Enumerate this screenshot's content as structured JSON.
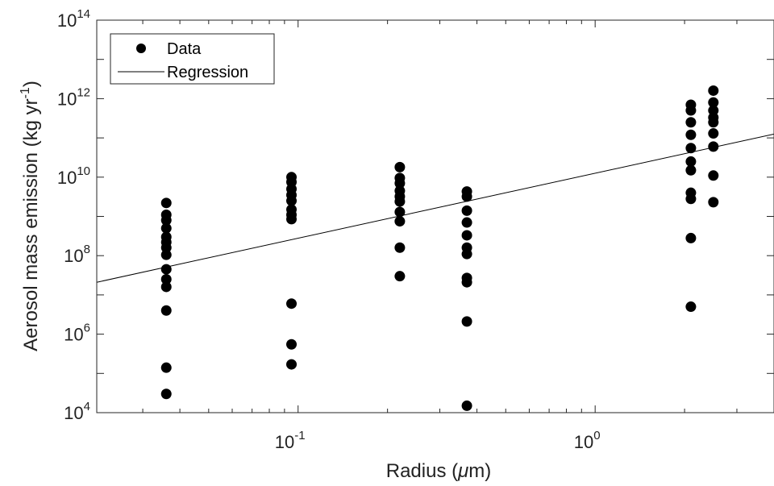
{
  "chart_data": {
    "type": "scatter",
    "x_scale": "log",
    "y_scale": "log",
    "xlim": [
      0.021,
      4.0
    ],
    "ylim": [
      10000,
      100000000000000
    ],
    "xlabel": {
      "prefix": "Radius (",
      "greek": "μ",
      "suffix": "m)"
    },
    "ylabel": {
      "main": "Aerosol mass emission (kg yr",
      "sup": "-1",
      "close": ")"
    },
    "x_ticks": [
      {
        "value": 0.1,
        "base": "10",
        "exp": "-1"
      },
      {
        "value": 1,
        "base": "10",
        "exp": "0"
      }
    ],
    "y_ticks": [
      {
        "value": 10000,
        "base": "10",
        "exp": "4"
      },
      {
        "value": 1000000,
        "base": "10",
        "exp": "6"
      },
      {
        "value": 100000000,
        "base": "10",
        "exp": "8"
      },
      {
        "value": 10000000000,
        "base": "10",
        "exp": "10"
      },
      {
        "value": 1000000000000,
        "base": "10",
        "exp": "12"
      },
      {
        "value": 100000000000000,
        "base": "10",
        "exp": "14"
      }
    ],
    "grid": false,
    "legend_position": "top-left",
    "series": [
      {
        "name": "Data",
        "mark": "circle",
        "color": "#000000",
        "points": [
          {
            "x": 0.036,
            "y": 2200000000.0
          },
          {
            "x": 0.036,
            "y": 1100000000.0
          },
          {
            "x": 0.036,
            "y": 800000000.0
          },
          {
            "x": 0.036,
            "y": 500000000.0
          },
          {
            "x": 0.036,
            "y": 300000000.0
          },
          {
            "x": 0.036,
            "y": 220000000.0
          },
          {
            "x": 0.036,
            "y": 160000000.0
          },
          {
            "x": 0.036,
            "y": 105000000.0
          },
          {
            "x": 0.036,
            "y": 45000000.0
          },
          {
            "x": 0.036,
            "y": 25000000.0
          },
          {
            "x": 0.036,
            "y": 16000000.0
          },
          {
            "x": 0.036,
            "y": 4000000.0
          },
          {
            "x": 0.036,
            "y": 140000.0
          },
          {
            "x": 0.036,
            "y": 30000.0
          },
          {
            "x": 0.095,
            "y": 10000000000.0
          },
          {
            "x": 0.095,
            "y": 7500000000.0
          },
          {
            "x": 0.095,
            "y": 5000000000.0
          },
          {
            "x": 0.095,
            "y": 3500000000.0
          },
          {
            "x": 0.095,
            "y": 2500000000.0
          },
          {
            "x": 0.095,
            "y": 1500000000.0
          },
          {
            "x": 0.095,
            "y": 1100000000.0
          },
          {
            "x": 0.095,
            "y": 850000000.0
          },
          {
            "x": 0.095,
            "y": 6000000.0
          },
          {
            "x": 0.095,
            "y": 550000.0
          },
          {
            "x": 0.095,
            "y": 170000.0
          },
          {
            "x": 0.22,
            "y": 18000000000.0
          },
          {
            "x": 0.22,
            "y": 9500000000.0
          },
          {
            "x": 0.22,
            "y": 7000000000.0
          },
          {
            "x": 0.22,
            "y": 4500000000.0
          },
          {
            "x": 0.22,
            "y": 3200000000.0
          },
          {
            "x": 0.22,
            "y": 2400000000.0
          },
          {
            "x": 0.22,
            "y": 1300000000.0
          },
          {
            "x": 0.22,
            "y": 750000000.0
          },
          {
            "x": 0.22,
            "y": 160000000.0
          },
          {
            "x": 0.22,
            "y": 30000000.0
          },
          {
            "x": 0.37,
            "y": 4300000000.0
          },
          {
            "x": 0.37,
            "y": 3200000000.0
          },
          {
            "x": 0.37,
            "y": 1400000000.0
          },
          {
            "x": 0.37,
            "y": 700000000.0
          },
          {
            "x": 0.37,
            "y": 330000000.0
          },
          {
            "x": 0.37,
            "y": 160000000.0
          },
          {
            "x": 0.37,
            "y": 110000000.0
          },
          {
            "x": 0.37,
            "y": 27000000.0
          },
          {
            "x": 0.37,
            "y": 21000000.0
          },
          {
            "x": 0.37,
            "y": 2100000.0
          },
          {
            "x": 0.37,
            "y": 15000.0
          },
          {
            "x": 2.1,
            "y": 700000000000.0
          },
          {
            "x": 2.1,
            "y": 500000000000.0
          },
          {
            "x": 2.1,
            "y": 250000000000.0
          },
          {
            "x": 2.1,
            "y": 120000000000.0
          },
          {
            "x": 2.1,
            "y": 55000000000.0
          },
          {
            "x": 2.1,
            "y": 25000000000.0
          },
          {
            "x": 2.1,
            "y": 15000000000.0
          },
          {
            "x": 2.1,
            "y": 4000000000.0
          },
          {
            "x": 2.1,
            "y": 2800000000.0
          },
          {
            "x": 2.1,
            "y": 280000000.0
          },
          {
            "x": 2.1,
            "y": 5000000.0
          },
          {
            "x": 2.5,
            "y": 1600000000000.0
          },
          {
            "x": 2.5,
            "y": 800000000000.0
          },
          {
            "x": 2.5,
            "y": 500000000000.0
          },
          {
            "x": 2.5,
            "y": 330000000000.0
          },
          {
            "x": 2.5,
            "y": 250000000000.0
          },
          {
            "x": 2.5,
            "y": 130000000000.0
          },
          {
            "x": 2.5,
            "y": 60000000000.0
          },
          {
            "x": 2.5,
            "y": 11000000000.0
          },
          {
            "x": 2.5,
            "y": 2300000000.0
          }
        ]
      },
      {
        "name": "Regression",
        "mark": "line",
        "color": "#000000",
        "points": [
          {
            "x": 0.021,
            "y": 21000000.0
          },
          {
            "x": 4.0,
            "y": 125000000000.0
          }
        ]
      }
    ]
  }
}
